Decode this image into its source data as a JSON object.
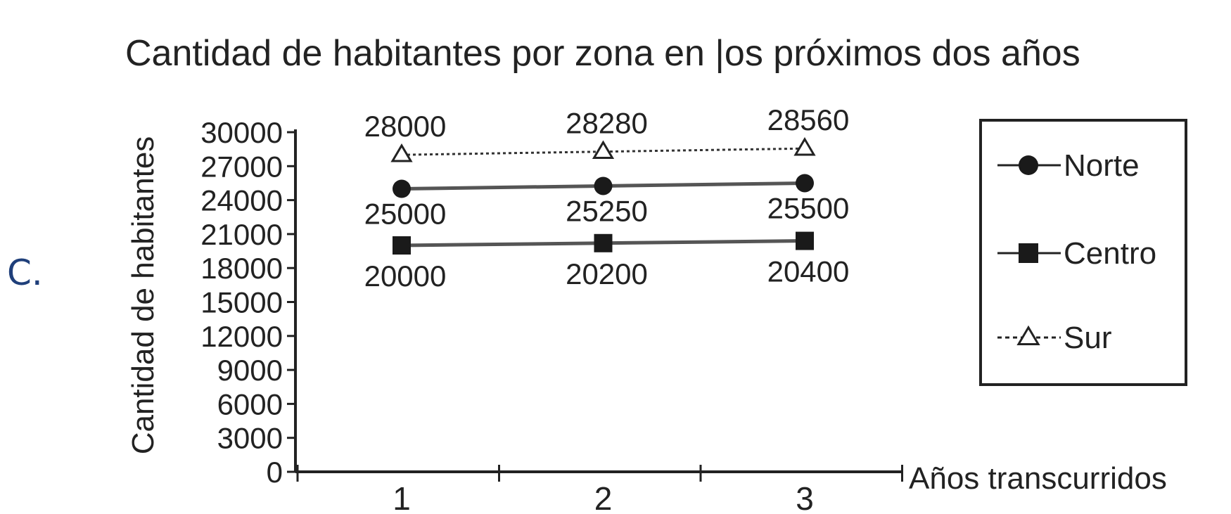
{
  "option_label": "C.",
  "chart_data": {
    "type": "line",
    "title": "Cantidad de habitantes por zona en |os próximos dos años",
    "xlabel": "Años transcurridos",
    "ylabel": "Cantidad de habitantes",
    "categories": [
      "1",
      "2",
      "3"
    ],
    "ylim": [
      0,
      30000
    ],
    "yticks": [
      "0",
      "3000",
      "6000",
      "9000",
      "12000",
      "15000",
      "18000",
      "21000",
      "24000",
      "27000",
      "30000"
    ],
    "series": [
      {
        "name": "Norte",
        "values": [
          25000,
          25250,
          25500
        ],
        "labels": [
          "25000",
          "25250",
          "25500"
        ],
        "marker": "circle",
        "line": "solid",
        "color": "#222222"
      },
      {
        "name": "Centro",
        "values": [
          20000,
          20200,
          20400
        ],
        "labels": [
          "20000",
          "20200",
          "20400"
        ],
        "marker": "square",
        "line": "solid",
        "color": "#222222"
      },
      {
        "name": "Sur",
        "values": [
          28000,
          28280,
          28560
        ],
        "labels": [
          "28000",
          "28280",
          "28560"
        ],
        "marker": "triangle",
        "line": "dotted",
        "color": "#222222"
      }
    ],
    "legend": "right",
    "grid": false
  }
}
